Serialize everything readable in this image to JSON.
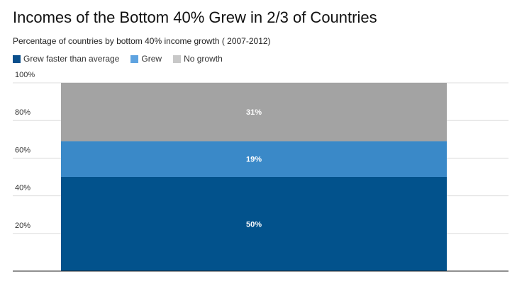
{
  "title": "Incomes of the Bottom 40% Grew in 2/3 of Countries",
  "subtitle": "Percentage of countries by bottom 40% income growth ( 2007-2012)",
  "legend": [
    {
      "label": "Grew faster than average",
      "color": "#0a4f8c"
    },
    {
      "label": "Grew",
      "color": "#5ea3e0"
    },
    {
      "label": "No growth",
      "color": "#c8c8c8"
    }
  ],
  "chart_data": {
    "type": "bar",
    "stacked": true,
    "categories": [
      ""
    ],
    "series": [
      {
        "name": "Grew faster than average",
        "values": [
          50
        ],
        "label": "50%",
        "color": "#02528c"
      },
      {
        "name": "Grew",
        "values": [
          19
        ],
        "label": "19%",
        "color": "#3a89c8"
      },
      {
        "name": "No growth",
        "values": [
          31
        ],
        "label": "31%",
        "color": "#a3a3a3"
      }
    ],
    "ylim": [
      0,
      100
    ],
    "yticks": [
      {
        "value": 20,
        "label": "20%"
      },
      {
        "value": 40,
        "label": "40%"
      },
      {
        "value": 60,
        "label": "60%"
      },
      {
        "value": 80,
        "label": "80%"
      },
      {
        "value": 100,
        "label": "100%"
      }
    ],
    "grid": true,
    "legend_position": "top-left"
  }
}
